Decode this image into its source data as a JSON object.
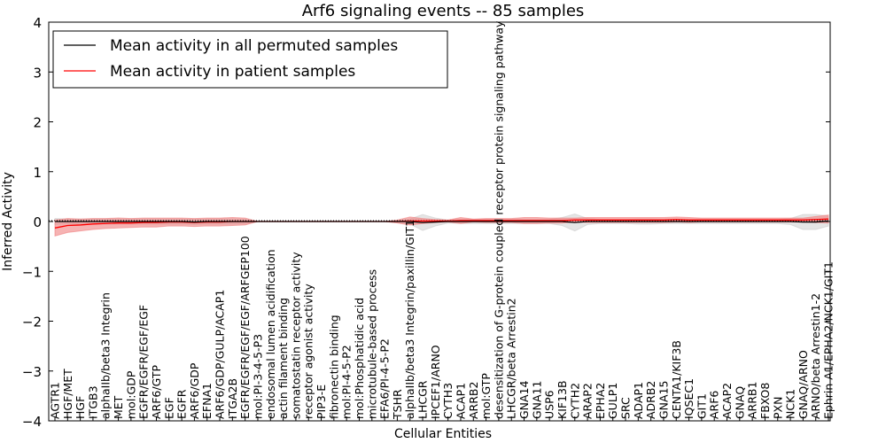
{
  "chart_data": {
    "type": "line",
    "title": "Arf6 signaling events -- 85 samples",
    "xlabel": "Cellular Entities",
    "ylabel": "Inferred Activity",
    "ylim": [
      -4,
      4
    ],
    "yticks": [
      "−4",
      "−3",
      "−2",
      "−1",
      "0",
      "1",
      "2",
      "3",
      "4"
    ],
    "legend_position": "top-left",
    "categories": [
      "AGTR1",
      "HGF/MET",
      "HGF",
      "ITGB3",
      "alphaIIb/beta3 Integrin",
      "MET",
      "mol:GDP",
      "EGFR/EGFR/EGF/EGF",
      "ARF6/GTP",
      "EGF",
      "EGFR",
      "ARF6/GDP",
      "EFNA1",
      "ARF6/GDP/GULP/ACAP1",
      "ITGA2B",
      "EGFR/EGFR/EGF/EGF/ARFGEP100",
      "mol:PI-3-4-5-P3",
      "endosomal lumen acidification",
      "actin filament binding",
      "somatostatin receptor activity",
      "receptor agonist activity",
      "PIP3-E",
      "fibronectin binding",
      "mol:PI-4-5-P2",
      "mol:Phosphatidic acid",
      "microtubule-based process",
      "EFA6/PI-4-5-P2",
      "TSHR",
      "alphaIIb/beta3 Integrin/paxillin/GIT1",
      "LHCGR",
      "IPCEF1/ARNO",
      "CYTH3",
      "ACAP1",
      "ARRB2",
      "mol:GTP",
      "desensitization of G-protein coupled receptor protein signaling pathway",
      "LHCGR/beta Arrestin2",
      "GNA14",
      "GNA11",
      "USP6",
      "KIF13B",
      "CYTH2",
      "ARAP2",
      "EPHA2",
      "GULP1",
      "SRC",
      "ADAP1",
      "ADRB2",
      "GNA15",
      "CENTA1/KIF3B",
      "IQSEC1",
      "GIT1",
      "ARF6",
      "ACAP2",
      "GNAQ",
      "ARRB1",
      "FBXO8",
      "PXN",
      "NCK1",
      "GNAQ/ARNO",
      "ARNO/beta Arrestin1-2",
      "Ephrin A1/EPHA2/NCK1/GIT1"
    ],
    "series": [
      {
        "name": "Mean activity in all permuted samples",
        "color": "#000000",
        "band_color": "#cccccc",
        "values": [
          0,
          0,
          0,
          0,
          0,
          0,
          0,
          0,
          0,
          0,
          0,
          -0.01,
          0,
          0,
          0,
          0,
          0,
          0,
          0,
          0,
          0,
          0,
          0,
          0,
          0,
          0,
          0,
          0,
          0,
          -0.02,
          -0.01,
          0,
          0,
          0,
          0,
          0,
          0,
          0,
          0,
          0,
          0,
          -0.02,
          0,
          0,
          0,
          0,
          0,
          0,
          0,
          0,
          0,
          0,
          0,
          0,
          0,
          0,
          0,
          0,
          0,
          -0.01,
          -0.01,
          0.01
        ],
        "band": [
          0.06,
          0.05,
          0.05,
          0.05,
          0.05,
          0.05,
          0.05,
          0.05,
          0.05,
          0.05,
          0.05,
          0.05,
          0.05,
          0.05,
          0.05,
          0.04,
          0,
          0,
          0,
          0,
          0,
          0,
          0,
          0,
          0,
          0,
          0,
          0.02,
          0.05,
          0.16,
          0.08,
          0.03,
          0.04,
          0.04,
          0.04,
          0.04,
          0.04,
          0.04,
          0.04,
          0.04,
          0.08,
          0.17,
          0.06,
          0.04,
          0.04,
          0.04,
          0.05,
          0.05,
          0.04,
          0.04,
          0.04,
          0.04,
          0.04,
          0.04,
          0.04,
          0.04,
          0.04,
          0.04,
          0.06,
          0.15,
          0.15,
          0.1
        ]
      },
      {
        "name": "Mean activity in patient samples",
        "color": "#ff0000",
        "band_color": "#f08080",
        "values": [
          -0.13,
          -0.08,
          -0.07,
          -0.05,
          -0.04,
          -0.03,
          -0.03,
          -0.02,
          -0.02,
          -0.01,
          -0.01,
          -0.02,
          -0.01,
          -0.01,
          0,
          0,
          0,
          0,
          0,
          0,
          0,
          0,
          0,
          0,
          0,
          0,
          0,
          0,
          0.01,
          0.01,
          0.01,
          0.01,
          0.02,
          0.02,
          0.02,
          0.02,
          0.02,
          0.02,
          0.02,
          0.02,
          0.02,
          0.03,
          0.03,
          0.03,
          0.03,
          0.03,
          0.03,
          0.03,
          0.03,
          0.04,
          0.03,
          0.03,
          0.03,
          0.03,
          0.03,
          0.03,
          0.03,
          0.03,
          0.03,
          0.03,
          0.04,
          0.05
        ],
        "band": [
          0.16,
          0.14,
          0.12,
          0.11,
          0.1,
          0.1,
          0.09,
          0.09,
          0.09,
          0.08,
          0.08,
          0.08,
          0.08,
          0.08,
          0.08,
          0.07,
          0,
          0,
          0,
          0,
          0,
          0,
          0,
          0,
          0,
          0,
          0,
          0.03,
          0.08,
          0.05,
          0.03,
          0.02,
          0.06,
          0.03,
          0.04,
          0.04,
          0.04,
          0.06,
          0.06,
          0.05,
          0.05,
          0.04,
          0.05,
          0.05,
          0.05,
          0.05,
          0.05,
          0.05,
          0.05,
          0.05,
          0.05,
          0.04,
          0.04,
          0.04,
          0.04,
          0.04,
          0.04,
          0.04,
          0.04,
          0.04,
          0.06,
          0.08
        ]
      }
    ]
  }
}
